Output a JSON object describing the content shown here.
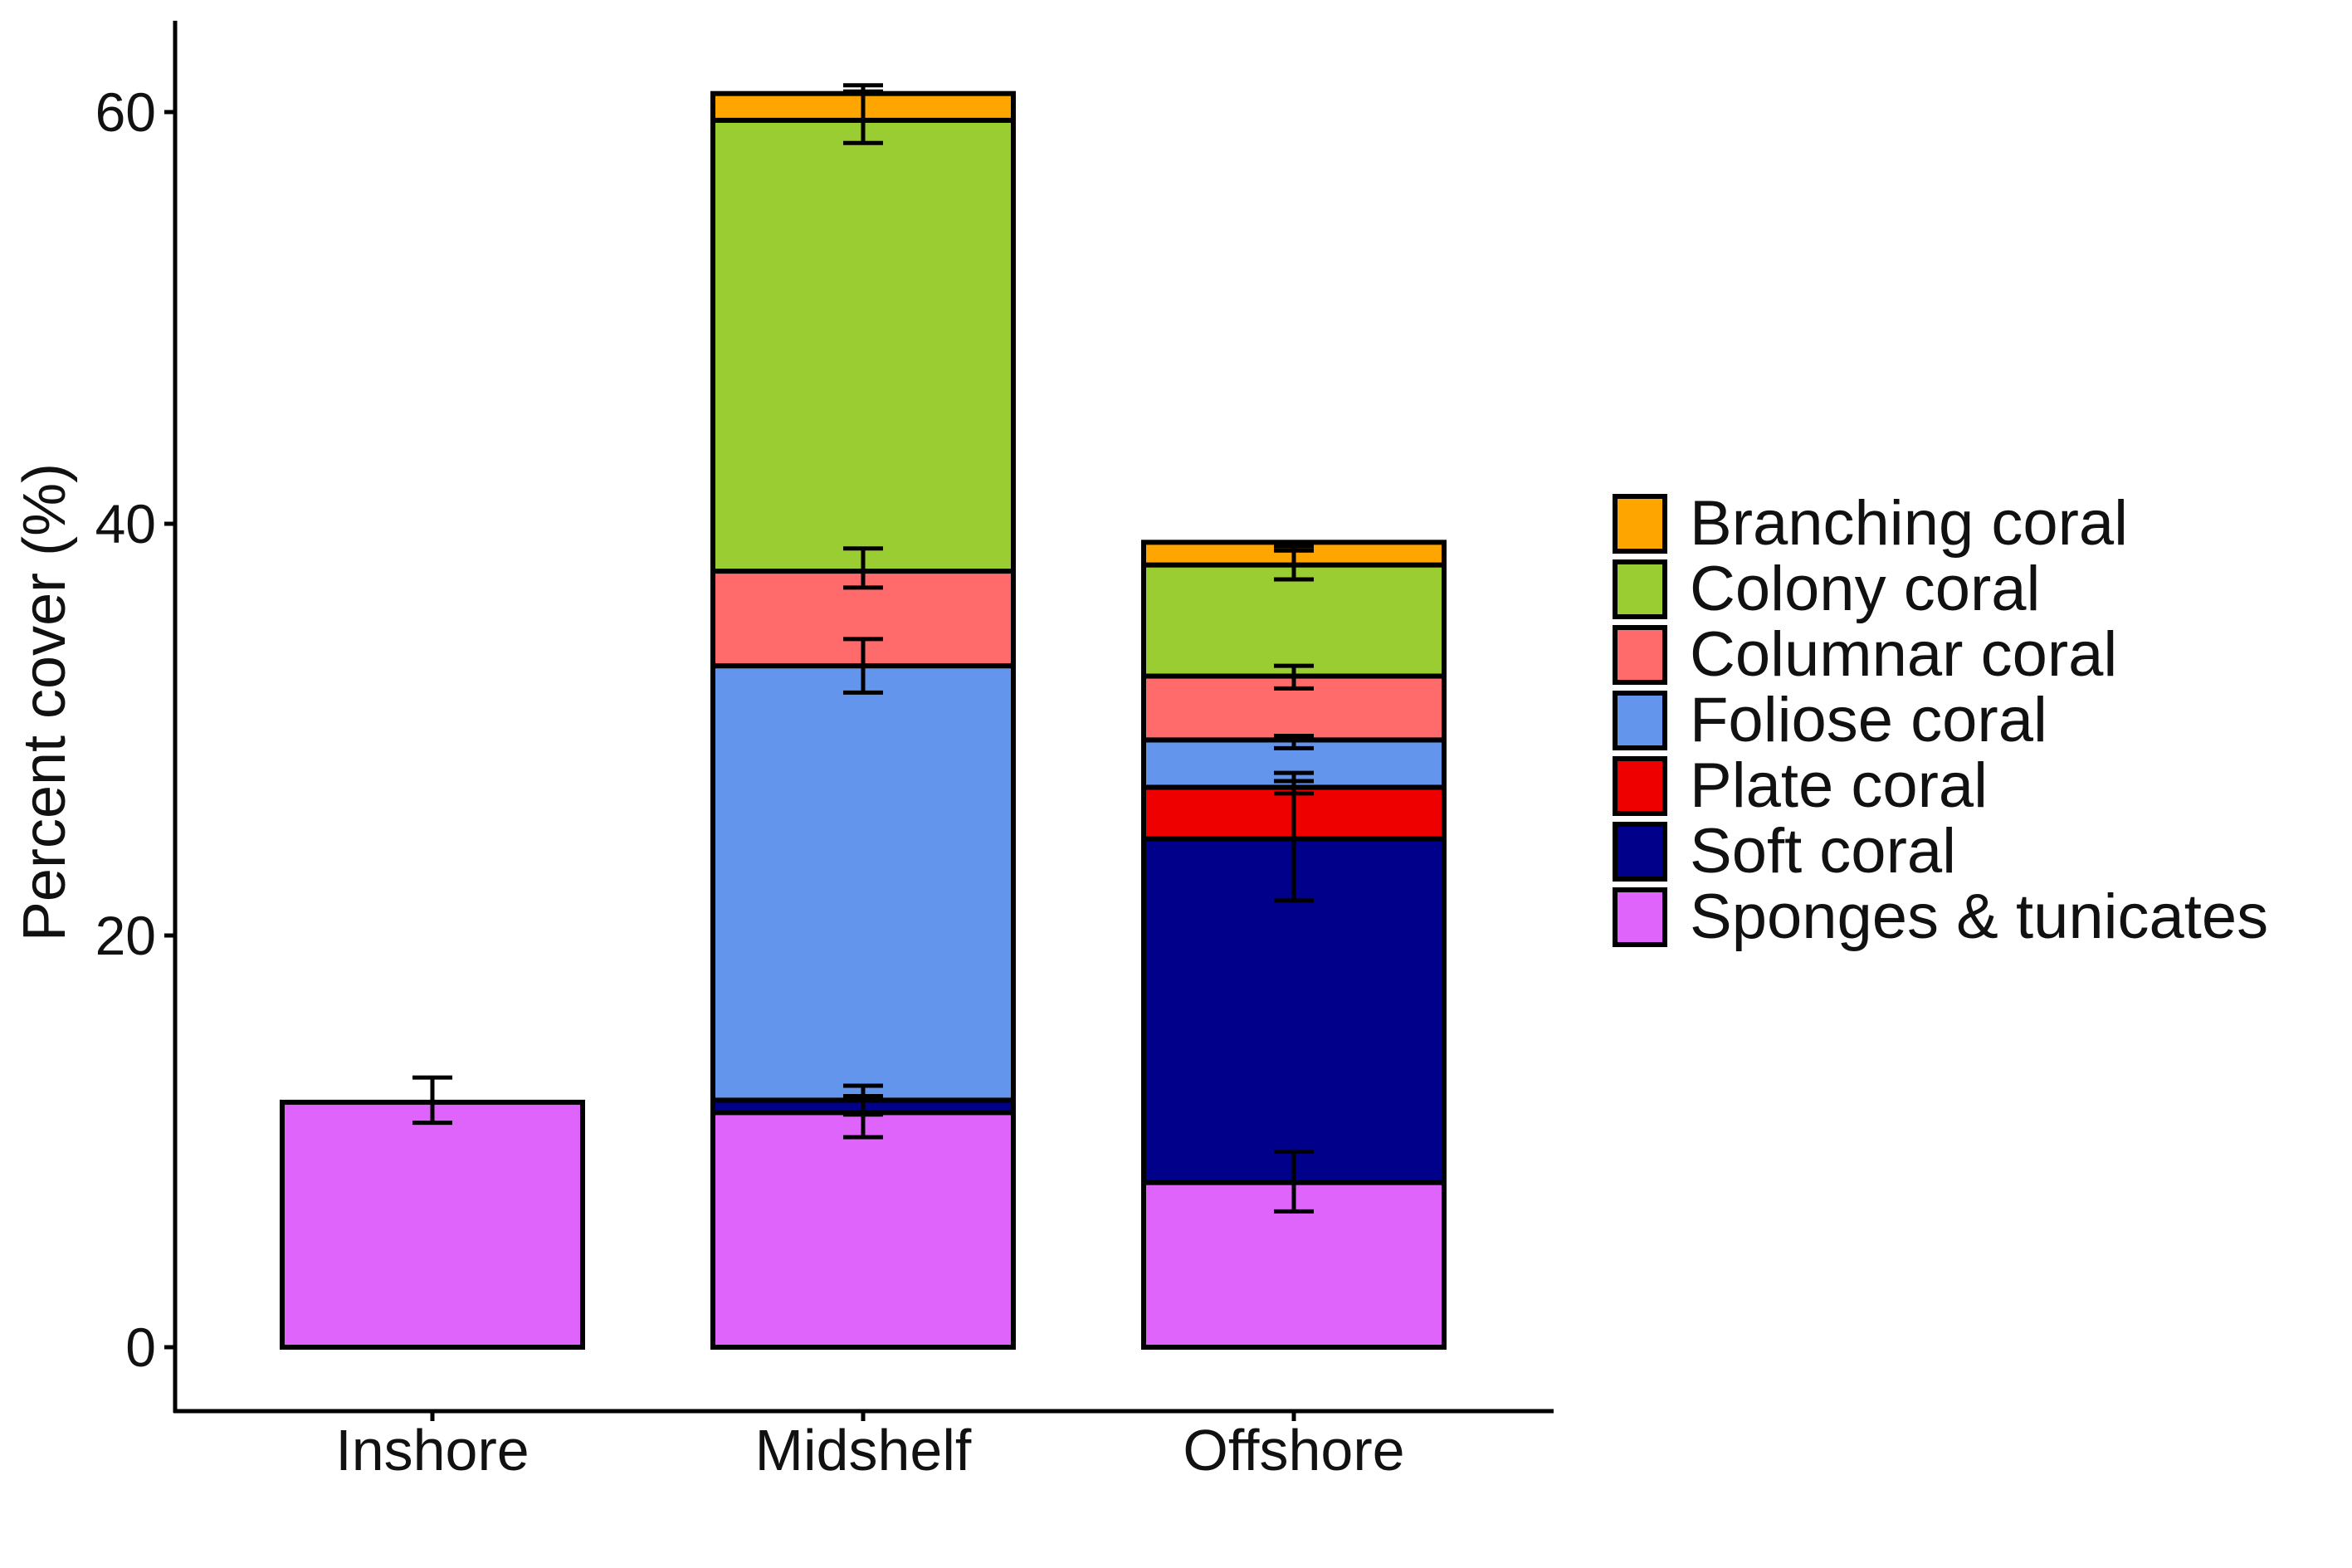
{
  "chart_data": {
    "type": "bar",
    "stacked": true,
    "categories": [
      "Inshore",
      "Midshelf",
      "Offshore"
    ],
    "ylabel": "Percent cover (%)",
    "xlabel": "",
    "ylim": [
      -3.2,
      64.5
    ],
    "yticks": [
      0,
      20,
      40,
      60
    ],
    "grid": false,
    "legend_position": "right",
    "series": [
      {
        "name": "Sponges & tunicates",
        "color": "#DF64FB",
        "values": [
          11.9,
          11.4,
          8.0
        ],
        "errors": [
          [
            10.9,
            13.1
          ],
          [
            10.2,
            12.7
          ],
          [
            6.6,
            9.5
          ]
        ]
      },
      {
        "name": "Soft coral",
        "color": "#00008B",
        "values": [
          0,
          0.6,
          16.7
        ],
        "errors": [
          null,
          [
            11.3,
            12.2
          ],
          [
            21.7,
            27.5
          ]
        ]
      },
      {
        "name": "Plate coral",
        "color": "#EE0000",
        "values": [
          0,
          0,
          2.5
        ],
        "errors": [
          null,
          null,
          [
            26.9,
            27.9
          ]
        ]
      },
      {
        "name": "Foliose coral",
        "color": "#6495ED",
        "values": [
          0,
          21.1,
          2.3
        ],
        "errors": [
          null,
          [
            31.8,
            34.4
          ],
          [
            29.1,
            29.7
          ]
        ]
      },
      {
        "name": "Columnar coral",
        "color": "#FF6A6A",
        "values": [
          0,
          4.6,
          3.1
        ],
        "errors": [
          null,
          [
            36.9,
            38.8
          ],
          [
            32.0,
            33.1
          ]
        ]
      },
      {
        "name": "Colony coral",
        "color": "#9ACD32",
        "values": [
          0,
          21.9,
          5.4
        ],
        "errors": [
          null,
          [
            58.5,
            60.9
          ],
          [
            37.3,
            38.9
          ]
        ]
      },
      {
        "name": "Branching coral",
        "color": "#FFA500",
        "values": [
          0,
          1.3,
          1.1
        ],
        "errors": [
          null,
          [
            61.0,
            61.3
          ],
          [
            38.7,
            39.1
          ]
        ]
      }
    ],
    "legend_order": [
      "Branching coral",
      "Colony coral",
      "Columnar coral",
      "Foliose coral",
      "Plate coral",
      "Soft coral",
      "Sponges & tunicates"
    ]
  }
}
